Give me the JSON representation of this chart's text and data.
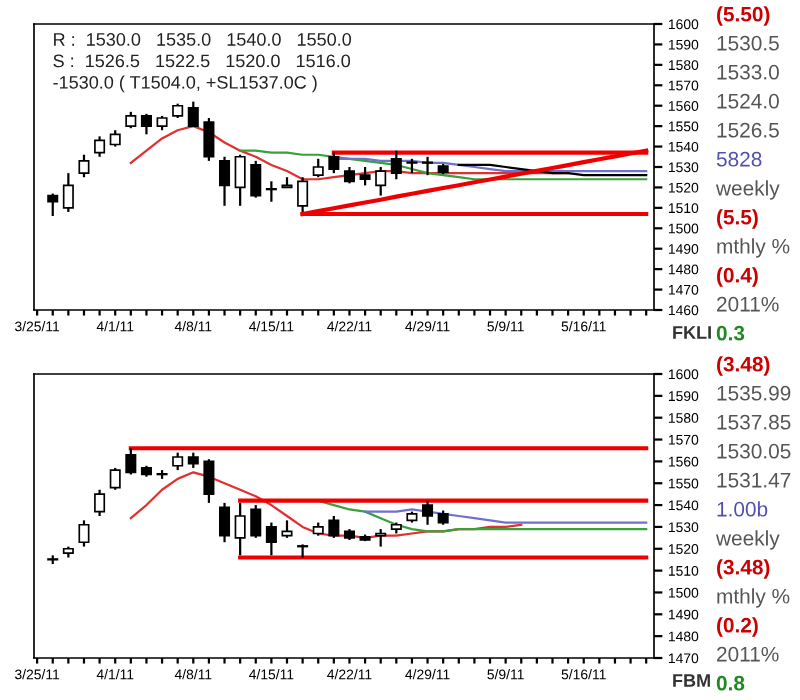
{
  "chart_data": [
    {
      "type": "candlestick",
      "categories": [
        "3/25/11",
        null,
        null,
        null,
        null,
        "4/1/11",
        null,
        null,
        null,
        null,
        "4/8/11",
        null,
        null,
        null,
        null,
        "4/15/11",
        null,
        null,
        null,
        null,
        "4/22/11",
        null,
        null,
        null,
        null,
        "4/29/11",
        null,
        null,
        null,
        null,
        "5/9/11",
        null,
        null,
        null,
        null,
        "5/16/11",
        null,
        null,
        null,
        null
      ],
      "ohlc": [
        null,
        [
          1516,
          1517,
          1506,
          1513
        ],
        [
          1510,
          1527,
          1508,
          1521
        ],
        [
          1527,
          1536,
          1525,
          1533
        ],
        [
          1537,
          1545,
          1535,
          1543
        ],
        [
          1541,
          1548,
          1540,
          1546
        ],
        [
          1550,
          1557,
          1549,
          1555
        ],
        [
          1555,
          1556,
          1546,
          1550
        ],
        [
          1550,
          1555,
          1548,
          1554
        ],
        [
          1555,
          1561,
          1554,
          1560
        ],
        [
          1559,
          1562,
          1550,
          1550
        ],
        [
          1552,
          1554,
          1533,
          1535
        ],
        [
          1533,
          1535,
          1511,
          1521
        ],
        [
          1520,
          1536,
          1511,
          1535
        ],
        [
          1531,
          1533,
          1515,
          1516
        ],
        [
          1519,
          1523,
          1513,
          1519
        ],
        [
          1520,
          1525,
          1520,
          1521
        ],
        [
          1511,
          1525,
          1508,
          1523
        ],
        [
          1526,
          1534,
          1525,
          1530
        ],
        [
          1535,
          1537,
          1527,
          1529
        ],
        [
          1528,
          1530,
          1522,
          1523
        ],
        [
          1526,
          1530,
          1521,
          1524
        ],
        [
          1521,
          1530,
          1516,
          1528
        ],
        [
          1534,
          1538,
          1524,
          1527
        ],
        [
          1532,
          1534,
          1527,
          1532
        ],
        [
          1532,
          1535,
          1526,
          1532
        ],
        [
          1530.5,
          1531.5,
          1526.5,
          1527.5
        ],
        null,
        null,
        null,
        null,
        null,
        null,
        null,
        null,
        null,
        null,
        null,
        null,
        null
      ],
      "series": [
        {
          "type": "line",
          "color": "#e03030",
          "values": [
            null,
            null,
            null,
            null,
            null,
            null,
            1532,
            1538,
            1544,
            1548,
            1550,
            1547,
            1542,
            1538,
            1535,
            1531,
            1528,
            1524,
            1524,
            1525,
            1526,
            1527,
            1528,
            1528,
            1527,
            1527,
            1527,
            1527,
            1527,
            1527,
            1527,
            1527,
            1527,
            1527,
            1527,
            null,
            null,
            null,
            null,
            null
          ]
        },
        {
          "type": "line",
          "color": "#3aa03a",
          "values": [
            null,
            null,
            null,
            null,
            null,
            null,
            null,
            null,
            null,
            null,
            null,
            null,
            null,
            1538,
            1538,
            1537,
            1537,
            1536,
            1536,
            1535,
            1534,
            1533,
            1532,
            1531,
            1529,
            1527,
            1526,
            1525,
            1524,
            1524,
            1524,
            1524,
            1524,
            1524,
            1524,
            1524,
            1524,
            1524,
            1524,
            1524
          ]
        },
        {
          "type": "line",
          "color": "#7070d0",
          "values": [
            null,
            null,
            null,
            null,
            null,
            null,
            null,
            null,
            null,
            null,
            null,
            null,
            null,
            null,
            null,
            null,
            null,
            null,
            null,
            1534,
            1534,
            1534,
            1533,
            1533,
            1533,
            1532,
            1532,
            1531,
            1530,
            1529,
            1528,
            1528,
            1528,
            1528,
            1528,
            1528,
            1528,
            1528,
            1528,
            1528
          ]
        },
        {
          "type": "line",
          "color": "#000000",
          "values": [
            null,
            null,
            null,
            null,
            null,
            null,
            null,
            null,
            null,
            null,
            null,
            null,
            null,
            null,
            null,
            null,
            null,
            null,
            null,
            null,
            null,
            null,
            null,
            null,
            null,
            null,
            null,
            1531,
            1531,
            1531,
            1530,
            1529,
            1528,
            1527,
            1527,
            1526,
            1526,
            1526,
            1526,
            1526
          ]
        },
        {
          "type": "line",
          "color": "#ee0000",
          "values": [
            null,
            null,
            null,
            null,
            null,
            null,
            null,
            null,
            null,
            null,
            null,
            null,
            null,
            null,
            null,
            null,
            null,
            null,
            null,
            1537,
            1537,
            1537,
            1537,
            1537,
            1537,
            1537,
            1537,
            1537,
            1537,
            1537,
            1537,
            1537,
            1537,
            1537,
            1537,
            1537,
            1537,
            1537,
            1537,
            1537
          ]
        },
        {
          "type": "line",
          "color": "#ee0000",
          "values": [
            null,
            null,
            null,
            null,
            null,
            null,
            null,
            null,
            null,
            null,
            null,
            null,
            null,
            null,
            null,
            null,
            null,
            1507,
            1507,
            1507,
            1507,
            1507,
            1507,
            1507,
            1507,
            1507,
            1507,
            1507,
            1507,
            1507,
            1507,
            1507,
            1507,
            1507,
            1507,
            1507,
            1507,
            1507,
            1507,
            1507
          ]
        },
        {
          "type": "line",
          "color": "#ee0000",
          "values": [
            null,
            null,
            null,
            null,
            null,
            null,
            null,
            null,
            null,
            null,
            null,
            null,
            null,
            null,
            null,
            null,
            null,
            1507,
            1508.4,
            1509.8,
            1511.2,
            1512.6,
            1514,
            1515.5,
            1516.9,
            1518.3,
            1519.7,
            1521.1,
            1522.5,
            1523.9,
            1525.3,
            1526.7,
            1528.1,
            1529.5,
            1530.9,
            1532.4,
            1533.8,
            1535.2,
            1536.6,
            1538
          ]
        }
      ],
      "ylim": [
        1460,
        1600
      ],
      "yticks": [
        1460,
        1470,
        1480,
        1490,
        1500,
        1510,
        1520,
        1530,
        1540,
        1550,
        1560,
        1570,
        1580,
        1590,
        1600
      ],
      "annotations": [
        "R :  1530.0   1535.0   1540.0   1550.0",
        "S :  1526.5   1522.5   1520.0   1516.0",
        "-1530.0 ( T1504.0, +SL1537.0C )",
        "(5.50)",
        "1530.5",
        "1533.0",
        "1524.0",
        "1526.5",
        "5828",
        "weekly",
        "(5.5)",
        "mthly %",
        "(0.4)",
        "2011%",
        "0.3",
        "FKLI"
      ]
    },
    {
      "type": "candlestick",
      "categories": [
        "3/25/11",
        null,
        null,
        null,
        null,
        "4/1/11",
        null,
        null,
        null,
        null,
        "4/8/11",
        null,
        null,
        null,
        null,
        "4/15/11",
        null,
        null,
        null,
        null,
        "4/22/11",
        null,
        null,
        null,
        null,
        "4/29/11",
        null,
        null,
        null,
        null,
        "5/9/11",
        null,
        null,
        null,
        null,
        "5/16/11",
        null,
        null,
        null,
        null
      ],
      "ohlc": [
        null,
        [
          1515,
          1517,
          1513,
          1515
        ],
        [
          1518,
          1521,
          1516,
          1520
        ],
        [
          1523,
          1533,
          1521,
          1531
        ],
        [
          1537,
          1547,
          1535,
          1545
        ],
        [
          1548,
          1557,
          1547,
          1556
        ],
        [
          1563,
          1566,
          1554,
          1555
        ],
        [
          1557,
          1558,
          1553,
          1554
        ],
        [
          1554,
          1556,
          1552,
          1554
        ],
        [
          1558,
          1564,
          1556,
          1562
        ],
        [
          1562,
          1564,
          1557,
          1559
        ],
        [
          1560,
          1561,
          1541,
          1545
        ],
        [
          1539,
          1541,
          1523,
          1526
        ],
        [
          1525,
          1541,
          1517,
          1535
        ],
        [
          1538,
          1540,
          1525,
          1526
        ],
        [
          1530,
          1532,
          1517,
          1523
        ],
        [
          1526,
          1533,
          1525,
          1528
        ],
        [
          1521,
          1522,
          1516,
          1521
        ],
        [
          1527,
          1532,
          1526,
          1530
        ],
        [
          1533,
          1535,
          1525,
          1526
        ],
        [
          1528,
          1529,
          1524,
          1525
        ],
        [
          1525.5,
          1526.5,
          1523.5,
          1524
        ],
        [
          1526,
          1529,
          1521,
          1527
        ],
        [
          1529,
          1532,
          1527,
          1531
        ],
        [
          1533,
          1537,
          1532,
          1536
        ],
        [
          1540,
          1542,
          1531,
          1535
        ],
        [
          1536,
          1537.5,
          1531,
          1532
        ],
        null,
        null,
        null,
        null,
        null,
        null,
        null,
        null,
        null,
        null,
        null,
        null,
        null
      ],
      "series": [
        {
          "type": "line",
          "color": "#e03030",
          "values": [
            null,
            null,
            null,
            null,
            null,
            null,
            1534,
            1540,
            1547,
            1552,
            1555,
            1553,
            1550,
            1547,
            1544,
            1540,
            1535,
            1530,
            1527,
            1526,
            1526,
            1525,
            1526,
            1526,
            1527,
            1528,
            1528,
            1529,
            1529,
            1530,
            1530,
            1531,
            null,
            null,
            null,
            null,
            null,
            null,
            null,
            null
          ]
        },
        {
          "type": "line",
          "color": "#3aa03a",
          "values": [
            null,
            null,
            null,
            null,
            null,
            null,
            null,
            null,
            null,
            null,
            null,
            null,
            null,
            null,
            null,
            null,
            null,
            null,
            1542,
            1540,
            1538,
            1537,
            1534,
            1531,
            1529,
            1528,
            1528,
            1529,
            1529,
            1529,
            1529,
            1529,
            1529,
            1529,
            1529,
            1529,
            1529,
            1529,
            1529,
            1529
          ]
        },
        {
          "type": "line",
          "color": "#7070d0",
          "values": [
            null,
            null,
            null,
            null,
            null,
            null,
            null,
            null,
            null,
            null,
            null,
            null,
            null,
            null,
            null,
            null,
            null,
            null,
            null,
            null,
            null,
            1537,
            1537,
            1537,
            1538,
            1537,
            1536,
            1535,
            1534,
            1533,
            1532,
            1532,
            1532,
            1532,
            1532,
            1532,
            1532,
            1532,
            1532,
            1532
          ]
        },
        {
          "type": "line",
          "color": "#ee0000",
          "values": [
            null,
            null,
            null,
            null,
            null,
            null,
            1566,
            1566,
            1566,
            1566,
            1566,
            1566,
            1566,
            1566,
            1566,
            1566,
            1566,
            1566,
            1566,
            1566,
            1566,
            1566,
            1566,
            1566,
            1566,
            1566,
            1566,
            1566,
            1566,
            1566,
            1566,
            1566,
            1566,
            1566,
            1566,
            1566,
            1566,
            1566,
            1566,
            1566
          ]
        },
        {
          "type": "line",
          "color": "#ee0000",
          "values": [
            null,
            null,
            null,
            null,
            null,
            null,
            null,
            null,
            null,
            null,
            null,
            null,
            null,
            1542,
            1542,
            1542,
            1542,
            1542,
            1542,
            1542,
            1542,
            1542,
            1542,
            1542,
            1542,
            1542,
            1542,
            1542,
            1542,
            1542,
            1542,
            1542,
            1542,
            1542,
            1542,
            1542,
            1542,
            1542,
            1542,
            1542
          ]
        },
        {
          "type": "line",
          "color": "#ee0000",
          "values": [
            null,
            null,
            null,
            null,
            null,
            null,
            null,
            null,
            null,
            null,
            null,
            null,
            null,
            1516,
            1516,
            1516,
            1516,
            1516,
            1516,
            1516,
            1516,
            1516,
            1516,
            1516,
            1516,
            1516,
            1516,
            1516,
            1516,
            1516,
            1516,
            1516,
            1516,
            1516,
            1516,
            1516,
            1516,
            1516,
            1516,
            1516
          ]
        }
      ],
      "ylim": [
        1470,
        1600
      ],
      "yticks": [
        1470,
        1480,
        1490,
        1500,
        1510,
        1520,
        1530,
        1540,
        1550,
        1560,
        1570,
        1580,
        1590,
        1600
      ],
      "annotations": [
        "(3.48)",
        "1535.99",
        "1537.85",
        "1530.05",
        "1531.47",
        "1.00b",
        "weekly",
        "(3.48)",
        "mthly %",
        "(0.2)",
        "2011%",
        "0.8",
        "FBM"
      ]
    }
  ]
}
